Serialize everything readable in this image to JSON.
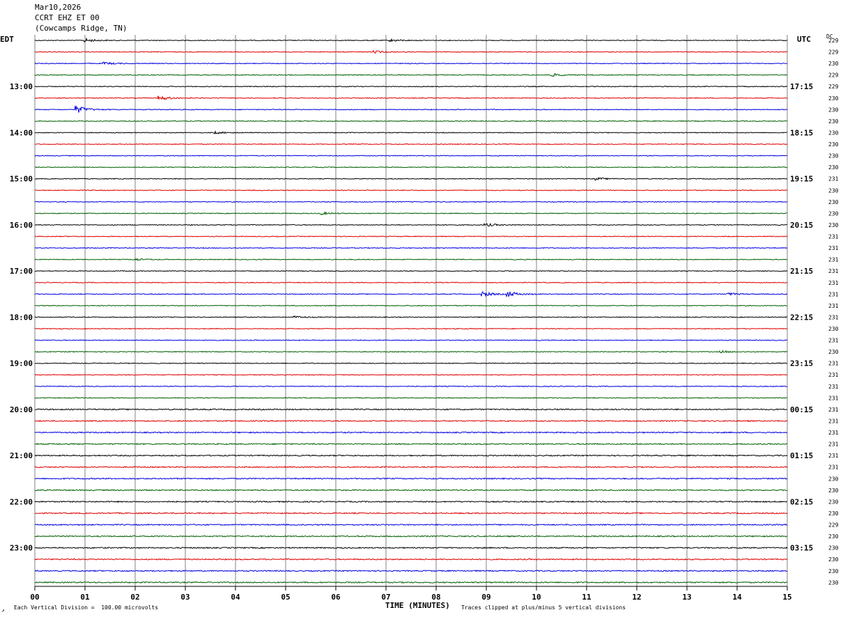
{
  "header": {
    "date": "Mar10,2026",
    "channel": "CCRT EHZ ET 00",
    "location": "(Cowcamps Ridge, TN)"
  },
  "labels": {
    "left_zone": "EDT",
    "right_zone": "UTC",
    "dc_label": "DC",
    "xaxis_title": "TIME (MINUTES)",
    "footer_left": "Each Vertical Division =  100.00 microvolts",
    "footer_right": "Traces clipped at plus/minus 5 vertical divisions",
    "footer_mark": "↗"
  },
  "colors": {
    "trace_cycle": [
      "#000000",
      "#e00000",
      "#0000e0",
      "#006000"
    ],
    "grid": "#808080"
  },
  "chart_data": {
    "type": "helicorder",
    "x_ticks": [
      "00",
      "01",
      "02",
      "03",
      "04",
      "05",
      "06",
      "07",
      "08",
      "09",
      "10",
      "11",
      "12",
      "13",
      "14",
      "15"
    ],
    "xlim": [
      0,
      15
    ],
    "row_count": 48,
    "minutes_per_row": 15,
    "left_hour_labels": [
      "13:00",
      "14:00",
      "15:00",
      "16:00",
      "17:00",
      "18:00",
      "19:00",
      "20:00",
      "21:00",
      "22:00",
      "23:00"
    ],
    "right_hour_labels": [
      "17:15",
      "18:15",
      "19:15",
      "20:15",
      "21:15",
      "22:15",
      "23:15",
      "00:15",
      "01:15",
      "02:15",
      "03:15"
    ],
    "dc_values": [
      "229",
      "229",
      "230",
      "229",
      "229",
      "230",
      "230",
      "230",
      "230",
      "230",
      "230",
      "230",
      "231",
      "230",
      "230",
      "230",
      "230",
      "231",
      "231",
      "231",
      "231",
      "231",
      "231",
      "231",
      "231",
      "230",
      "231",
      "230",
      "231",
      "231",
      "231",
      "231",
      "231",
      "231",
      "231",
      "231",
      "231",
      "231",
      "230",
      "230",
      "230",
      "230",
      "229",
      "230",
      "230",
      "230",
      "230",
      "230"
    ],
    "events": [
      {
        "row": 0,
        "minute": 1.0,
        "amp": 2.5
      },
      {
        "row": 0,
        "minute": 7.1,
        "amp": 1.5
      },
      {
        "row": 1,
        "minute": 6.8,
        "amp": 1.5
      },
      {
        "row": 2,
        "minute": 1.4,
        "amp": 1.5
      },
      {
        "row": 3,
        "minute": 10.3,
        "amp": 2.0
      },
      {
        "row": 5,
        "minute": 2.5,
        "amp": 3.0
      },
      {
        "row": 6,
        "minute": 0.85,
        "amp": 5.0
      },
      {
        "row": 8,
        "minute": 3.6,
        "amp": 1.5
      },
      {
        "row": 12,
        "minute": 11.2,
        "amp": 1.5
      },
      {
        "row": 15,
        "minute": 5.7,
        "amp": 1.8
      },
      {
        "row": 16,
        "minute": 9.0,
        "amp": 2.0
      },
      {
        "row": 19,
        "minute": 2.0,
        "amp": 1.5
      },
      {
        "row": 22,
        "minute": 8.95,
        "amp": 3.0
      },
      {
        "row": 22,
        "minute": 9.45,
        "amp": 3.5
      },
      {
        "row": 22,
        "minute": 13.85,
        "amp": 1.5
      },
      {
        "row": 24,
        "minute": 5.2,
        "amp": 1.3
      },
      {
        "row": 27,
        "minute": 13.7,
        "amp": 1.3
      }
    ]
  }
}
